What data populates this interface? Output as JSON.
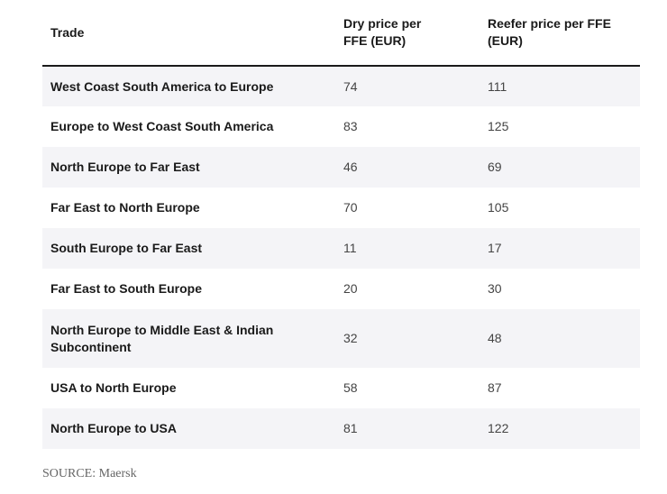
{
  "table": {
    "headers": {
      "trade": "Trade",
      "dry": "Dry price per FFE (EUR)",
      "reefer": "Reefer price per FFE (EUR)"
    },
    "rows": [
      {
        "trade": "West Coast South America to Europe",
        "dry": "74",
        "reefer": "111"
      },
      {
        "trade": "Europe to West Coast South America",
        "dry": "83",
        "reefer": "125"
      },
      {
        "trade": "North Europe to Far East",
        "dry": "46",
        "reefer": "69"
      },
      {
        "trade": "Far East to North Europe",
        "dry": "70",
        "reefer": "105"
      },
      {
        "trade": "South Europe to Far East",
        "dry": "11",
        "reefer": "17"
      },
      {
        "trade": "Far East to South Europe",
        "dry": "20",
        "reefer": "30"
      },
      {
        "trade": "North Europe to Middle East & Indian Subcontinent",
        "dry": "32",
        "reefer": "48"
      },
      {
        "trade": "USA to North Europe",
        "dry": "58",
        "reefer": "87"
      },
      {
        "trade": "North Europe to USA",
        "dry": "81",
        "reefer": "122"
      }
    ]
  },
  "source": "SOURCE: Maersk"
}
